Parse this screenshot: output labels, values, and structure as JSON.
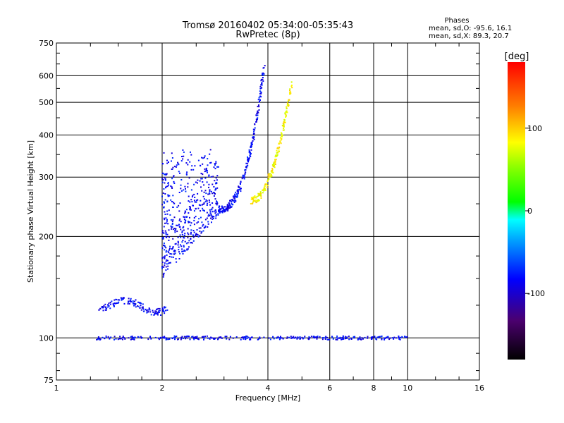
{
  "chart_data": {
    "type": "scatter",
    "title": "Tromsø 20160402 05:34:00-05:35:43",
    "subtitle": "RwPretec (8p)",
    "xlabel": "Frequency [MHz]",
    "ylabel": "Stationary phase Virtual Height [km]",
    "x_scale": "log",
    "y_scale": "log",
    "xlim": [
      1,
      16
    ],
    "ylim": [
      75,
      750
    ],
    "x_ticks": [
      1,
      2,
      4,
      6,
      8,
      10,
      16
    ],
    "x_tick_labels": [
      "1",
      "2",
      "4",
      "6",
      "8",
      "10",
      "16"
    ],
    "y_ticks": [
      75,
      100,
      200,
      300,
      400,
      500,
      600,
      750
    ],
    "y_tick_labels": [
      "75",
      "100",
      "200",
      "300",
      "400",
      "500",
      "600",
      "750"
    ],
    "grid": true,
    "phase_stats": {
      "heading": "Phases",
      "line_o": "mean, sd,O:  -95.6, 16.1",
      "line_x": "mean, sd,X:  89.3, 20.7"
    },
    "colorbar": {
      "label": "[deg]",
      "range": [
        -180,
        180
      ],
      "ticks": [
        -100,
        0,
        100
      ],
      "tick_labels": [
        "-100",
        "0",
        "100"
      ]
    },
    "series": [
      {
        "mode": "O",
        "mean_phase": -95.6,
        "sd_phase": 16.1,
        "segments": [
          {
            "desc": "low cusp",
            "f_range": [
              1.3,
              2.05
            ],
            "h_range": [
              120,
              140
            ]
          },
          {
            "desc": "E-region trace",
            "f_range": [
              1.3,
              10
            ],
            "h_range": [
              99,
              101
            ]
          },
          {
            "desc": "F1 spread",
            "f_range": [
              2.0,
              2.9
            ],
            "h_range": [
              150,
              380
            ]
          },
          {
            "desc": "F2 rise",
            "f_range": [
              2.9,
              3.9
            ],
            "h_range": [
              240,
              640
            ]
          }
        ]
      },
      {
        "mode": "X",
        "mean_phase": 89.3,
        "sd_phase": 20.7,
        "segments": [
          {
            "desc": "X trace",
            "f_range": [
              3.6,
              4.7
            ],
            "h_range": [
              255,
              590
            ]
          }
        ]
      }
    ]
  }
}
